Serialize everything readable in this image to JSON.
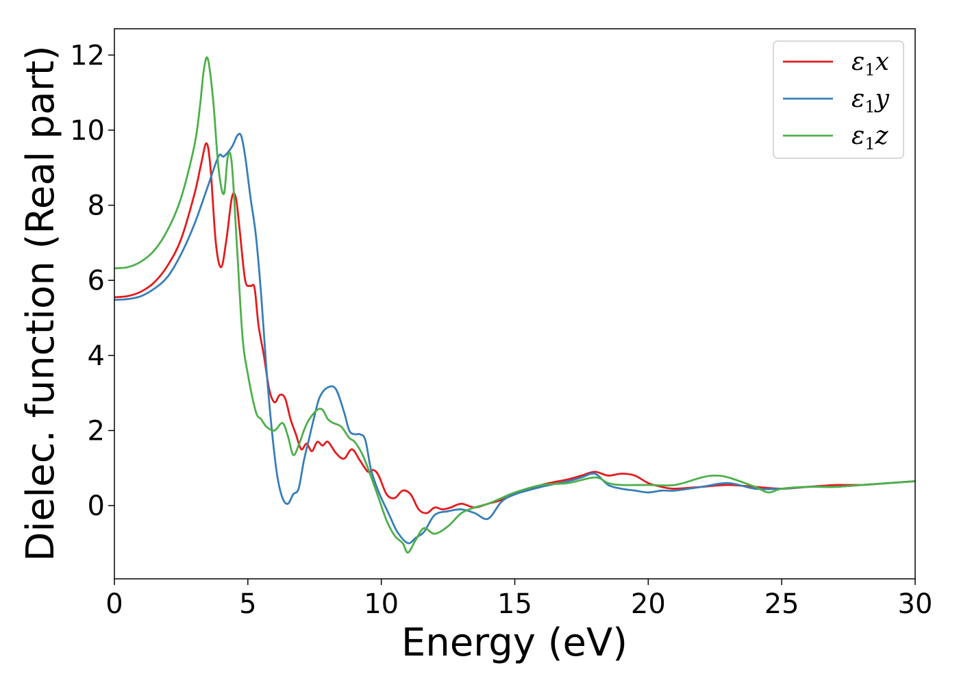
{
  "chart_data": {
    "type": "line",
    "title": "",
    "xlabel": "Energy (eV)",
    "ylabel": "Dielec. function (Real part)",
    "xlim": [
      0,
      30
    ],
    "ylim": [
      -1.95,
      12.7
    ],
    "xticks": [
      0,
      5,
      10,
      15,
      20,
      25,
      30
    ],
    "xtick_labels": [
      "0",
      "5",
      "10",
      "15",
      "20",
      "25",
      "30"
    ],
    "yticks": [
      0,
      2,
      4,
      6,
      8,
      10,
      12
    ],
    "ytick_labels": [
      "0",
      "2",
      "4",
      "6",
      "8",
      "10",
      "12"
    ],
    "grid": false,
    "legend": {
      "position": "top-right",
      "entries": [
        {
          "base": "ε",
          "sub": "1",
          "axis": "x"
        },
        {
          "base": "ε",
          "sub": "1",
          "axis": "y"
        },
        {
          "base": "ε",
          "sub": "1",
          "axis": "z"
        }
      ]
    },
    "series": [
      {
        "color": "#e41a1c",
        "x": [
          0,
          0.5,
          1,
          1.5,
          2,
          2.5,
          3,
          3.25,
          3.45,
          3.6,
          3.8,
          4.0,
          4.2,
          4.4,
          4.55,
          4.7,
          4.9,
          5.1,
          5.25,
          5.4,
          5.6,
          5.8,
          6.0,
          6.2,
          6.4,
          6.6,
          6.8,
          7.0,
          7.2,
          7.4,
          7.6,
          7.8,
          8.0,
          8.3,
          8.6,
          8.9,
          9.2,
          9.5,
          9.7,
          9.9,
          10.2,
          10.5,
          10.8,
          11.1,
          11.4,
          11.7,
          12.0,
          12.3,
          12.6,
          13.0,
          13.5,
          14.0,
          14.5,
          15,
          16,
          17,
          17.5,
          18,
          18.5,
          19,
          19.5,
          20,
          20.5,
          21,
          22,
          23,
          24,
          25,
          26,
          27,
          28,
          29,
          30
        ],
        "values": [
          5.55,
          5.58,
          5.7,
          5.95,
          6.4,
          7.1,
          8.3,
          9.1,
          9.65,
          9.0,
          7.0,
          6.35,
          7.1,
          8.2,
          8.2,
          7.3,
          6.0,
          5.85,
          5.8,
          4.8,
          4.0,
          3.1,
          2.75,
          2.95,
          2.85,
          2.3,
          1.9,
          1.5,
          1.65,
          1.45,
          1.7,
          1.6,
          1.7,
          1.4,
          1.25,
          1.5,
          1.2,
          0.9,
          0.95,
          0.8,
          0.3,
          0.2,
          0.4,
          0.3,
          -0.1,
          -0.2,
          -0.05,
          -0.1,
          -0.05,
          0.05,
          -0.05,
          0.05,
          0.15,
          0.3,
          0.55,
          0.7,
          0.8,
          0.9,
          0.8,
          0.85,
          0.8,
          0.6,
          0.5,
          0.45,
          0.5,
          0.55,
          0.5,
          0.45,
          0.5,
          0.55,
          0.55,
          0.6,
          0.65
        ]
      },
      {
        "color": "#377eb8",
        "x": [
          0,
          0.5,
          1,
          1.5,
          2,
          2.5,
          3,
          3.5,
          3.9,
          4.1,
          4.4,
          4.6,
          4.75,
          4.9,
          5.1,
          5.3,
          5.5,
          5.7,
          5.9,
          6.1,
          6.3,
          6.5,
          6.7,
          6.9,
          7.1,
          7.3,
          7.5,
          7.7,
          8.0,
          8.3,
          8.6,
          8.8,
          9.0,
          9.2,
          9.4,
          9.6,
          9.8,
          10.0,
          10.3,
          10.6,
          11.0,
          11.3,
          11.6,
          12.0,
          12.5,
          13.0,
          13.5,
          14.0,
          14.5,
          15,
          16,
          17,
          17.5,
          18,
          18.5,
          19,
          19.5,
          20,
          20.5,
          21,
          22,
          23,
          24,
          25,
          26,
          27,
          28,
          29,
          30
        ],
        "values": [
          5.48,
          5.5,
          5.58,
          5.78,
          6.1,
          6.7,
          7.5,
          8.5,
          9.3,
          9.3,
          9.55,
          9.85,
          9.85,
          9.3,
          8.2,
          7.2,
          5.6,
          3.6,
          2.0,
          0.8,
          0.2,
          0.05,
          0.3,
          0.45,
          1.2,
          1.8,
          2.4,
          2.9,
          3.15,
          3.1,
          2.5,
          2.0,
          1.9,
          1.9,
          1.75,
          1.0,
          0.55,
          0.2,
          -0.25,
          -0.7,
          -1.0,
          -0.85,
          -0.7,
          -0.25,
          -0.15,
          -0.1,
          -0.2,
          -0.35,
          0.1,
          0.3,
          0.5,
          0.65,
          0.75,
          0.85,
          0.55,
          0.45,
          0.4,
          0.35,
          0.4,
          0.4,
          0.5,
          0.6,
          0.45,
          0.45,
          0.5,
          0.5,
          0.55,
          0.6,
          0.65
        ]
      },
      {
        "color": "#4daf4a",
        "x": [
          0,
          0.5,
          1,
          1.5,
          2,
          2.5,
          3,
          3.2,
          3.35,
          3.5,
          3.7,
          3.9,
          4.1,
          4.25,
          4.4,
          4.6,
          4.8,
          5.0,
          5.3,
          5.5,
          5.7,
          6.0,
          6.3,
          6.5,
          6.7,
          6.9,
          7.1,
          7.3,
          7.6,
          7.8,
          8.0,
          8.2,
          8.5,
          8.8,
          9.0,
          9.3,
          9.6,
          9.9,
          10.2,
          10.5,
          10.8,
          11.0,
          11.3,
          11.6,
          12.0,
          12.5,
          13.0,
          13.5,
          14.0,
          14.5,
          15,
          16,
          17,
          18,
          18.5,
          19,
          20,
          21,
          22,
          22.5,
          23,
          24,
          24.5,
          25,
          26,
          27,
          28,
          29,
          30
        ],
        "values": [
          6.32,
          6.35,
          6.5,
          6.8,
          7.35,
          8.2,
          9.6,
          10.6,
          11.6,
          11.9,
          10.8,
          9.0,
          8.3,
          9.3,
          9.1,
          6.8,
          4.5,
          3.5,
          2.5,
          2.3,
          2.1,
          2.0,
          2.2,
          1.85,
          1.35,
          1.6,
          2.0,
          2.3,
          2.55,
          2.55,
          2.3,
          2.2,
          2.1,
          1.8,
          1.7,
          1.35,
          0.8,
          0.2,
          -0.4,
          -0.8,
          -1.0,
          -1.25,
          -0.9,
          -0.6,
          -0.75,
          -0.55,
          -0.2,
          -0.05,
          0.05,
          0.2,
          0.35,
          0.55,
          0.6,
          0.75,
          0.6,
          0.55,
          0.55,
          0.55,
          0.75,
          0.8,
          0.75,
          0.5,
          0.35,
          0.45,
          0.5,
          0.5,
          0.55,
          0.6,
          0.65
        ]
      }
    ]
  }
}
